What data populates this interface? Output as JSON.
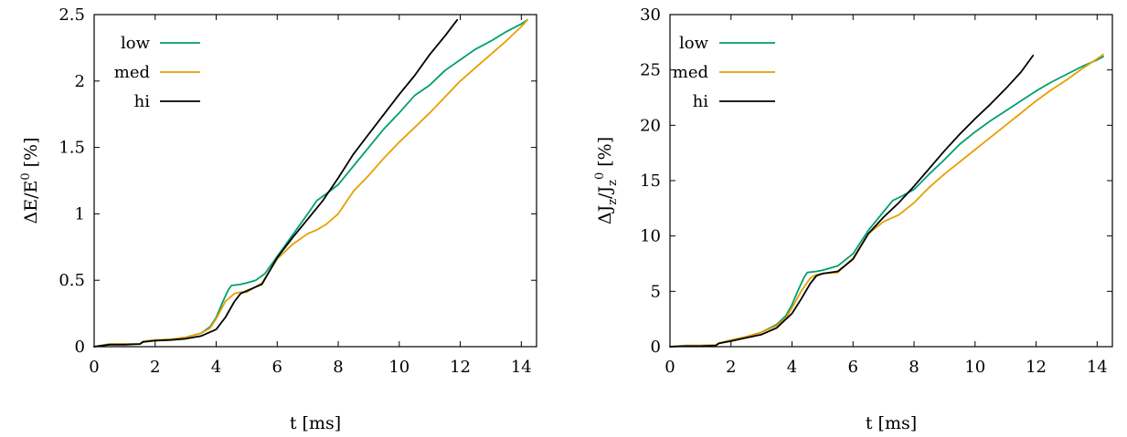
{
  "colors": {
    "low": "#009e73",
    "med": "#e69f00",
    "hi": "#000000"
  },
  "chart_data": [
    {
      "type": "line",
      "xlabel": "t [ms]",
      "ylabel_parts": {
        "delta": "Δ",
        "var": "E/E",
        "sup": "0",
        "unit": " [%]"
      },
      "xlim": [
        0,
        14.5
      ],
      "ylim": [
        0,
        2.5
      ],
      "xticks": [
        0,
        2,
        4,
        6,
        8,
        10,
        12,
        14
      ],
      "xtick_labels": [
        "0",
        "2",
        "4",
        "6",
        "8",
        "10",
        "12",
        "14"
      ],
      "yticks": [
        0,
        0.5,
        1,
        1.5,
        2,
        2.5
      ],
      "ytick_labels": [
        "0",
        "0.5",
        "1",
        "1.5",
        "2",
        "2.5"
      ],
      "legend_position": "top-left",
      "grid": false,
      "series": [
        {
          "name": "low",
          "x": [
            0,
            0.5,
            1.0,
            1.5,
            1.6,
            2.0,
            2.5,
            3.0,
            3.5,
            3.8,
            4.0,
            4.2,
            4.4,
            4.5,
            4.8,
            5.0,
            5.3,
            5.6,
            6.0,
            6.5,
            7.0,
            7.3,
            7.6,
            8.0,
            8.5,
            9.0,
            9.5,
            10.0,
            10.5,
            11.0,
            11.5,
            12.0,
            12.5,
            13.0,
            13.5,
            14.0,
            14.2
          ],
          "y": [
            0.0,
            0.02,
            0.02,
            0.02,
            0.04,
            0.05,
            0.055,
            0.07,
            0.1,
            0.15,
            0.22,
            0.33,
            0.43,
            0.46,
            0.47,
            0.48,
            0.5,
            0.55,
            0.68,
            0.84,
            1.0,
            1.1,
            1.15,
            1.22,
            1.36,
            1.5,
            1.64,
            1.76,
            1.89,
            1.97,
            2.08,
            2.16,
            2.24,
            2.3,
            2.37,
            2.43,
            2.46
          ]
        },
        {
          "name": "med",
          "x": [
            0,
            0.5,
            1.0,
            1.5,
            1.6,
            2.0,
            2.5,
            3.0,
            3.5,
            3.8,
            4.0,
            4.3,
            4.6,
            4.8,
            5.0,
            5.5,
            6.0,
            6.5,
            7.0,
            7.3,
            7.6,
            8.0,
            8.5,
            9.0,
            9.5,
            10.0,
            10.5,
            11.0,
            11.5,
            12.0,
            12.5,
            13.0,
            13.5,
            14.0,
            14.2
          ],
          "y": [
            0.0,
            0.02,
            0.02,
            0.02,
            0.04,
            0.05,
            0.055,
            0.07,
            0.1,
            0.14,
            0.21,
            0.34,
            0.4,
            0.41,
            0.41,
            0.48,
            0.66,
            0.77,
            0.85,
            0.88,
            0.92,
            1.0,
            1.17,
            1.29,
            1.42,
            1.54,
            1.65,
            1.76,
            1.88,
            2.0,
            2.1,
            2.2,
            2.3,
            2.41,
            2.46
          ]
        },
        {
          "name": "hi",
          "x": [
            0,
            0.5,
            1.0,
            1.5,
            1.6,
            2.0,
            2.5,
            3.0,
            3.5,
            4.0,
            4.3,
            4.6,
            4.8,
            5.0,
            5.5,
            6.0,
            6.5,
            7.0,
            7.5,
            8.0,
            8.5,
            9.0,
            9.5,
            10.0,
            10.5,
            11.0,
            11.5,
            11.9
          ],
          "y": [
            0.0,
            0.015,
            0.015,
            0.02,
            0.035,
            0.045,
            0.05,
            0.06,
            0.08,
            0.13,
            0.22,
            0.34,
            0.4,
            0.42,
            0.47,
            0.67,
            0.82,
            0.96,
            1.1,
            1.27,
            1.45,
            1.6,
            1.75,
            1.9,
            2.04,
            2.2,
            2.34,
            2.46
          ]
        }
      ]
    },
    {
      "type": "line",
      "xlabel": "t [ms]",
      "ylabel_parts": {
        "delta": "Δ",
        "j1": "J",
        "sub1": "z",
        "slash": "/J",
        "sub2": "z",
        "sup": "0",
        "unit": " [%]"
      },
      "xlim": [
        0,
        14.5
      ],
      "ylim": [
        0,
        30
      ],
      "xticks": [
        0,
        2,
        4,
        6,
        8,
        10,
        12,
        14
      ],
      "xtick_labels": [
        "0",
        "2",
        "4",
        "6",
        "8",
        "10",
        "12",
        "14"
      ],
      "yticks": [
        0,
        5,
        10,
        15,
        20,
        25,
        30
      ],
      "ytick_labels": [
        "0",
        "5",
        "10",
        "15",
        "20",
        "25",
        "30"
      ],
      "legend_position": "top-left",
      "grid": false,
      "series": [
        {
          "name": "low",
          "x": [
            0,
            0.5,
            1.0,
            1.5,
            1.6,
            2.0,
            2.5,
            3.0,
            3.5,
            3.8,
            4.0,
            4.2,
            4.4,
            4.5,
            4.8,
            5.0,
            5.5,
            6.0,
            6.5,
            7.0,
            7.3,
            7.6,
            8.0,
            8.5,
            9.0,
            9.5,
            10.0,
            10.5,
            11.0,
            11.5,
            12.0,
            12.5,
            13.0,
            13.5,
            14.0,
            14.2
          ],
          "y": [
            0.0,
            0.1,
            0.1,
            0.15,
            0.3,
            0.6,
            0.9,
            1.3,
            2.0,
            2.8,
            3.8,
            5.1,
            6.3,
            6.7,
            6.8,
            6.9,
            7.3,
            8.4,
            10.5,
            12.2,
            13.2,
            13.6,
            14.2,
            15.6,
            16.9,
            18.3,
            19.4,
            20.4,
            21.3,
            22.2,
            23.1,
            23.9,
            24.6,
            25.3,
            25.9,
            26.2
          ]
        },
        {
          "name": "med",
          "x": [
            0,
            0.5,
            1.0,
            1.5,
            1.6,
            2.0,
            2.5,
            3.0,
            3.5,
            3.8,
            4.0,
            4.3,
            4.6,
            4.8,
            5.0,
            5.5,
            6.0,
            6.5,
            7.0,
            7.5,
            8.0,
            8.5,
            9.0,
            9.5,
            10.0,
            10.5,
            11.0,
            11.5,
            12.0,
            12.5,
            13.0,
            13.5,
            14.0,
            14.2
          ],
          "y": [
            0.0,
            0.1,
            0.1,
            0.15,
            0.3,
            0.6,
            0.9,
            1.3,
            1.9,
            2.6,
            3.5,
            5.0,
            6.2,
            6.5,
            6.6,
            6.7,
            8.0,
            10.2,
            11.3,
            11.9,
            13.0,
            14.4,
            15.6,
            16.7,
            17.8,
            18.9,
            20.0,
            21.1,
            22.2,
            23.2,
            24.1,
            25.1,
            26.0,
            26.4
          ]
        },
        {
          "name": "hi",
          "x": [
            0,
            0.5,
            1.0,
            1.5,
            1.6,
            2.0,
            2.5,
            3.0,
            3.5,
            4.0,
            4.3,
            4.6,
            4.8,
            5.0,
            5.5,
            6.0,
            6.5,
            7.0,
            7.5,
            8.0,
            8.5,
            9.0,
            9.5,
            10.0,
            10.5,
            11.0,
            11.5,
            11.9
          ],
          "y": [
            0.0,
            0.05,
            0.05,
            0.1,
            0.3,
            0.5,
            0.8,
            1.1,
            1.7,
            3.0,
            4.3,
            5.7,
            6.4,
            6.6,
            6.8,
            7.9,
            10.2,
            11.7,
            13.0,
            14.5,
            16.1,
            17.7,
            19.2,
            20.6,
            21.9,
            23.3,
            24.8,
            26.3
          ]
        }
      ]
    }
  ]
}
